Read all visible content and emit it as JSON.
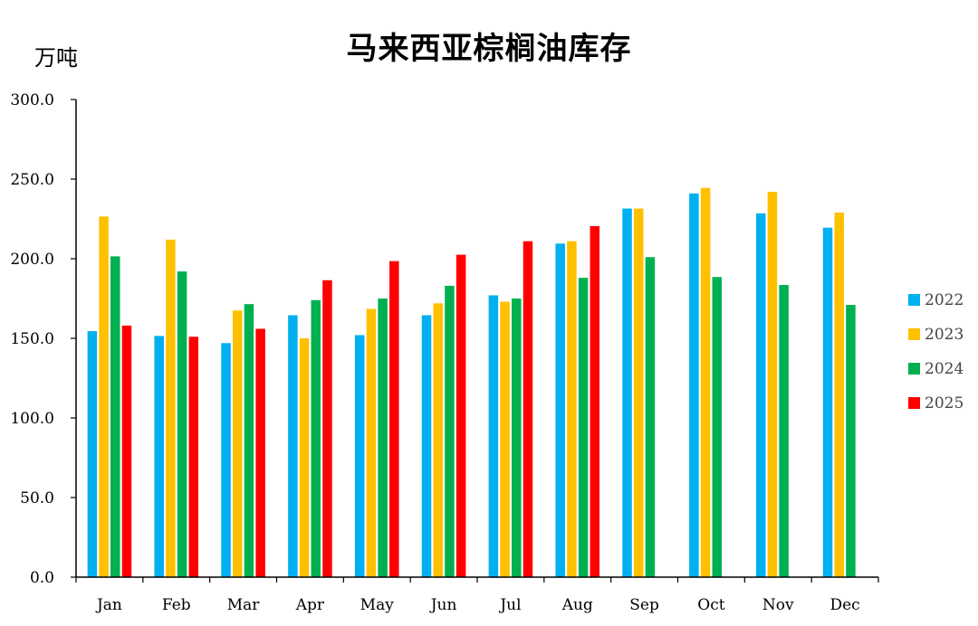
{
  "chart_data": {
    "type": "bar",
    "title": "马来西亚棕榈油库存",
    "ylabel": "万吨",
    "xlabel": "",
    "ylim": [
      0,
      300
    ],
    "ytick_step": 50,
    "ytick_format": 1,
    "legend_position": "right",
    "categories": [
      "Jan",
      "Feb",
      "Mar",
      "Apr",
      "May",
      "Jun",
      "Jul",
      "Aug",
      "Sep",
      "Oct",
      "Nov",
      "Dec"
    ],
    "series": [
      {
        "name": "2022",
        "color": "#00B0F0",
        "values": [
          154.5,
          151.5,
          147.0,
          164.5,
          152.0,
          164.5,
          177.0,
          209.5,
          231.5,
          241.0,
          228.5,
          219.5
        ]
      },
      {
        "name": "2023",
        "color": "#FFC000",
        "values": [
          226.5,
          212.0,
          167.5,
          150.0,
          168.5,
          172.0,
          173.0,
          211.0,
          231.5,
          244.5,
          242.0,
          229.0
        ]
      },
      {
        "name": "2024",
        "color": "#00B050",
        "values": [
          201.5,
          192.0,
          171.5,
          174.0,
          175.0,
          183.0,
          175.0,
          188.0,
          201.0,
          188.5,
          183.5,
          171.0
        ]
      },
      {
        "name": "2025",
        "color": "#FF0000",
        "values": [
          158.0,
          151.0,
          156.0,
          186.5,
          198.5,
          202.5,
          211.0,
          220.5,
          null,
          null,
          null,
          null
        ]
      }
    ]
  }
}
